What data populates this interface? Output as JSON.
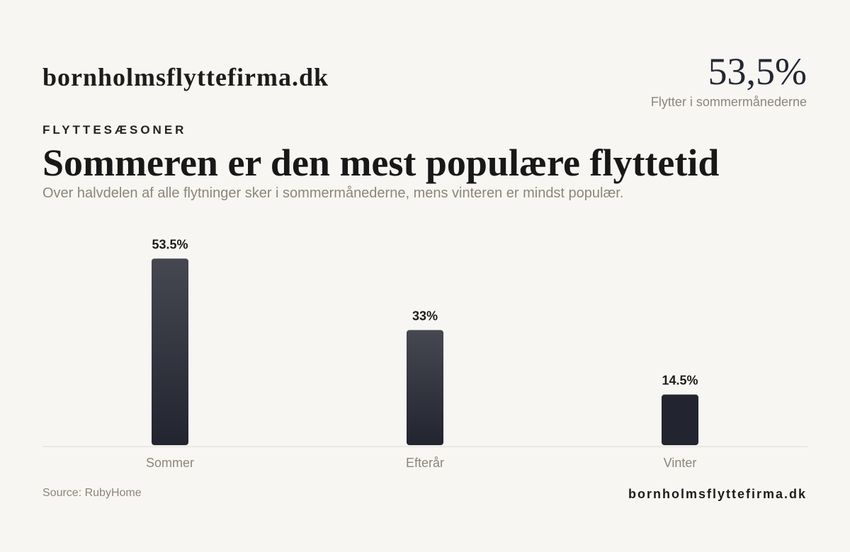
{
  "header": {
    "brand": "bornholmsflyttefirma.dk",
    "kpi_value": "53,5%",
    "kpi_label": "Flytter i sommermånederne"
  },
  "eyebrow": "FLYTTESÆSONER",
  "title": "Sommeren er den mest populære flyttetid",
  "subtitle": "Over halvdelen af alle flytninger sker i sommermånederne, mens vinteren er mindst populær.",
  "footer": {
    "source": "Source: RubyHome",
    "brand": "bornholmsflyttefirma.dk"
  },
  "colors": {
    "background": "#f8f6f2",
    "bar_top": "#454751",
    "bar_bottom": "#22252f",
    "axis": "#dedbd5",
    "muted_text": "#8c857c"
  },
  "chart_data": {
    "type": "bar",
    "categories": [
      "Sommer",
      "Efterår",
      "Vinter"
    ],
    "values": [
      53.5,
      33,
      14.5
    ],
    "value_labels": [
      "53.5%",
      "33%",
      "14.5%"
    ],
    "title": "Sommeren er den mest populære flyttetid",
    "xlabel": "",
    "ylabel": "",
    "ylim": [
      0,
      56
    ],
    "grid": false,
    "legend": "none"
  }
}
